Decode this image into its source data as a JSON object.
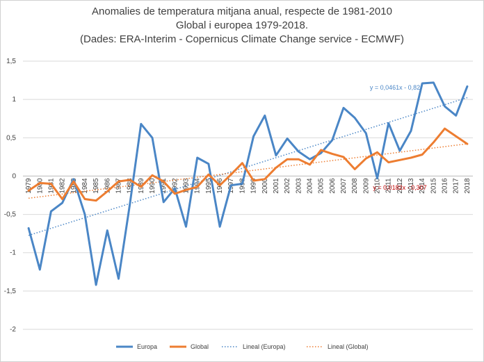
{
  "chart_data": {
    "type": "line",
    "title": "Anomalies de temperatura mitjana anual, respecte de 1981-2010",
    "subtitle": "Global i europea 1979-2018.",
    "source": "(Dades: ERA-Interim - Copernicus Climate Change service - ECMWF)",
    "ylim": [
      -2,
      1.5
    ],
    "yticks": [
      "1,5",
      "1",
      "0,5",
      "0",
      "-0,5",
      "-1",
      "-1,5",
      "-2"
    ],
    "ytick_values": [
      1.5,
      1,
      0.5,
      0,
      -0.5,
      -1,
      -1.5,
      -2
    ],
    "categories": [
      "1979",
      "1980",
      "1981",
      "1982",
      "1983",
      "1984",
      "1985",
      "1986",
      "1987",
      "1988",
      "1989",
      "1990",
      "1991",
      "1992",
      "1993",
      "1994",
      "1995",
      "1996",
      "1997",
      "1998",
      "1999",
      "2000",
      "2001",
      "2002",
      "2003",
      "2004",
      "2005",
      "2006",
      "2007",
      "2008",
      "2009",
      "2010",
      "2011",
      "2012",
      "2013",
      "2014",
      "2015",
      "2016",
      "2017",
      "2018"
    ],
    "series": [
      {
        "name": "Europa",
        "color": "#4a86c6",
        "values": [
          -0.68,
          -1.22,
          -0.46,
          -0.35,
          -0.04,
          -0.5,
          -1.42,
          -0.71,
          -1.34,
          -0.37,
          0.68,
          0.5,
          -0.34,
          -0.16,
          -0.66,
          0.24,
          0.16,
          -0.66,
          -0.12,
          -0.1,
          0.52,
          0.79,
          0.27,
          0.49,
          0.32,
          0.22,
          0.3,
          0.47,
          0.89,
          0.76,
          0.56,
          -0.03,
          0.69,
          0.33,
          0.59,
          1.21,
          1.22,
          0.91,
          0.79,
          1.17
        ]
      },
      {
        "name": "Global",
        "color": "#ed7d31",
        "values": [
          -0.19,
          -0.09,
          -0.1,
          -0.3,
          -0.07,
          -0.3,
          -0.32,
          -0.2,
          -0.07,
          -0.05,
          -0.14,
          0.01,
          -0.07,
          -0.23,
          -0.18,
          -0.14,
          0.02,
          -0.12,
          0.02,
          0.17,
          -0.06,
          -0.04,
          0.11,
          0.22,
          0.22,
          0.15,
          0.34,
          0.29,
          0.25,
          0.09,
          0.23,
          0.31,
          0.18,
          0.21,
          0.24,
          0.28,
          0.44,
          0.62,
          0.52,
          0.42
        ]
      }
    ],
    "trendlines": [
      {
        "name": "Lineal  (Europa)",
        "series": "Europa",
        "slope": 0.0461,
        "intercept": -0.82,
        "equation": "y = 0,0461x - 0,82",
        "color": "#4a86c6"
      },
      {
        "name": "Lineal  (Global)",
        "series": "Global",
        "slope": 0.0182,
        "intercept": -0.307,
        "equation": "y = 0,0182x - 0,307",
        "color": "#ed7d31",
        "label_color": "#c00000"
      }
    ],
    "legend": [
      "Europa",
      "Global",
      "Lineal  (Europa)",
      "Lineal  (Global)"
    ],
    "legend_position": "bottom",
    "grid": true
  }
}
